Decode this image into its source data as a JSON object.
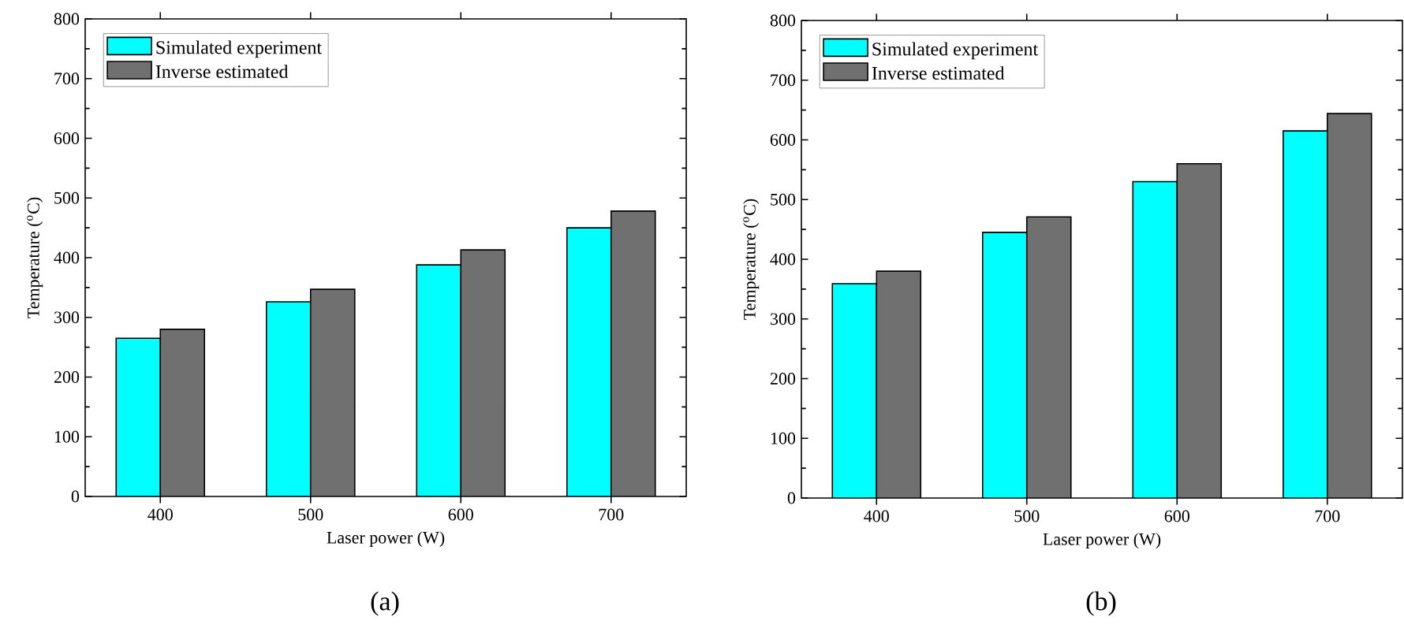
{
  "chart_data": [
    {
      "type": "bar",
      "title": "(a)",
      "xlabel": "Laser power (W)",
      "ylabel": "Temperature ($^{o}$C)",
      "categories": [
        "400",
        "500",
        "600",
        "700"
      ],
      "series": [
        {
          "name": "Simulated experiment",
          "color": "#00ffff",
          "values": [
            265,
            326,
            388,
            450
          ]
        },
        {
          "name": "Inverse estimated",
          "color": "#707070",
          "values": [
            280,
            347,
            413,
            478
          ]
        }
      ],
      "ylim": [
        0,
        800
      ],
      "yticks": [
        0,
        100,
        200,
        300,
        400,
        500,
        600,
        700,
        800
      ],
      "legend": "top left",
      "grid": false
    },
    {
      "type": "bar",
      "title": "(b)",
      "xlabel": "Laser power (W)",
      "ylabel": "Temperature ($^{o}$C)",
      "categories": [
        "400",
        "500",
        "600",
        "700"
      ],
      "series": [
        {
          "name": "Simulated experiment",
          "color": "#00ffff",
          "values": [
            359,
            445,
            530,
            615
          ]
        },
        {
          "name": "Inverse estimated",
          "color": "#707070",
          "values": [
            380,
            471,
            560,
            644
          ]
        }
      ],
      "ylim": [
        0,
        800
      ],
      "yticks": [
        0,
        100,
        200,
        300,
        400,
        500,
        600,
        700,
        800
      ],
      "legend": "top left",
      "grid": false
    }
  ]
}
